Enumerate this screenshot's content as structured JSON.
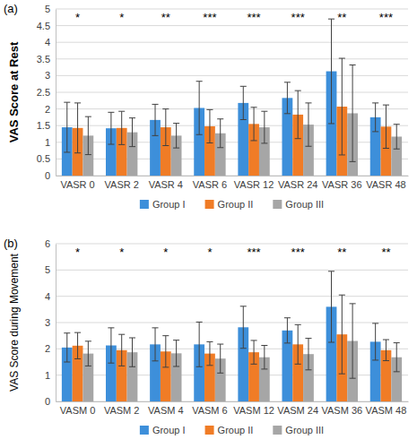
{
  "chart_data": [
    {
      "type": "bar",
      "panel": "(a)",
      "y_label": "VAS Score at Rest",
      "categories": [
        "VASR 0",
        "VASR 2",
        "VASR 4",
        "VASR 6",
        "VASR 12",
        "VASR 24",
        "VASR 36",
        "VASR 48"
      ],
      "annotations": [
        "*",
        "*",
        "**",
        "***",
        "***",
        "***",
        "**",
        "***"
      ],
      "series": [
        {
          "name": "Group I",
          "color": "#3d8fda",
          "values": [
            1.45,
            1.42,
            1.67,
            2.03,
            2.18,
            2.33,
            3.13,
            1.75
          ],
          "errors": [
            0.75,
            0.48,
            0.47,
            0.8,
            0.5,
            0.47,
            1.57,
            0.43
          ]
        },
        {
          "name": "Group II",
          "color": "#f07c26",
          "values": [
            1.43,
            1.43,
            1.45,
            1.48,
            1.55,
            1.83,
            2.07,
            1.47
          ],
          "errors": [
            0.75,
            0.5,
            0.55,
            0.5,
            0.5,
            0.72,
            1.45,
            0.65
          ]
        },
        {
          "name": "Group III",
          "color": "#a6a6a6",
          "values": [
            1.2,
            1.3,
            1.2,
            1.27,
            1.45,
            1.53,
            1.87,
            1.17
          ],
          "errors": [
            0.57,
            0.43,
            0.37,
            0.43,
            0.48,
            0.65,
            1.45,
            0.37
          ]
        }
      ],
      "ylim": [
        0,
        5
      ],
      "yticks": [
        0,
        0.5,
        1,
        1.5,
        2,
        2.5,
        3,
        3.5,
        4,
        4.5,
        5
      ],
      "grid": true,
      "legend": "bottom"
    },
    {
      "type": "bar",
      "panel": "(b)",
      "y_label": "VAS Score during Movement",
      "categories": [
        "VASM 0",
        "VASM 2",
        "VASM 4",
        "VASM 6",
        "VASM 12",
        "VASM 24",
        "VASM 36",
        "VASM 48"
      ],
      "annotations": [
        "*",
        "*",
        "*",
        "*",
        "***",
        "***",
        "**",
        "**"
      ],
      "series": [
        {
          "name": "Group I",
          "color": "#3d8fda",
          "values": [
            2.05,
            2.13,
            2.17,
            2.17,
            2.82,
            2.7,
            3.6,
            2.27
          ],
          "errors": [
            0.55,
            0.67,
            0.63,
            0.85,
            0.8,
            0.48,
            1.35,
            0.7
          ]
        },
        {
          "name": "Group II",
          "color": "#f07c26",
          "values": [
            2.12,
            1.95,
            1.9,
            1.82,
            1.87,
            2.17,
            2.55,
            1.95
          ],
          "errors": [
            0.5,
            0.6,
            0.6,
            0.45,
            0.45,
            0.75,
            1.5,
            0.4
          ]
        },
        {
          "name": "Group III",
          "color": "#a6a6a6",
          "values": [
            1.82,
            1.87,
            1.83,
            1.63,
            1.68,
            1.8,
            2.3,
            1.68
          ],
          "errors": [
            0.47,
            0.55,
            0.5,
            0.55,
            0.45,
            0.6,
            1.42,
            0.55
          ]
        }
      ],
      "ylim": [
        0,
        6
      ],
      "yticks": [
        0,
        1,
        2,
        3,
        4,
        5,
        6
      ],
      "grid": true,
      "legend": "bottom"
    }
  ]
}
